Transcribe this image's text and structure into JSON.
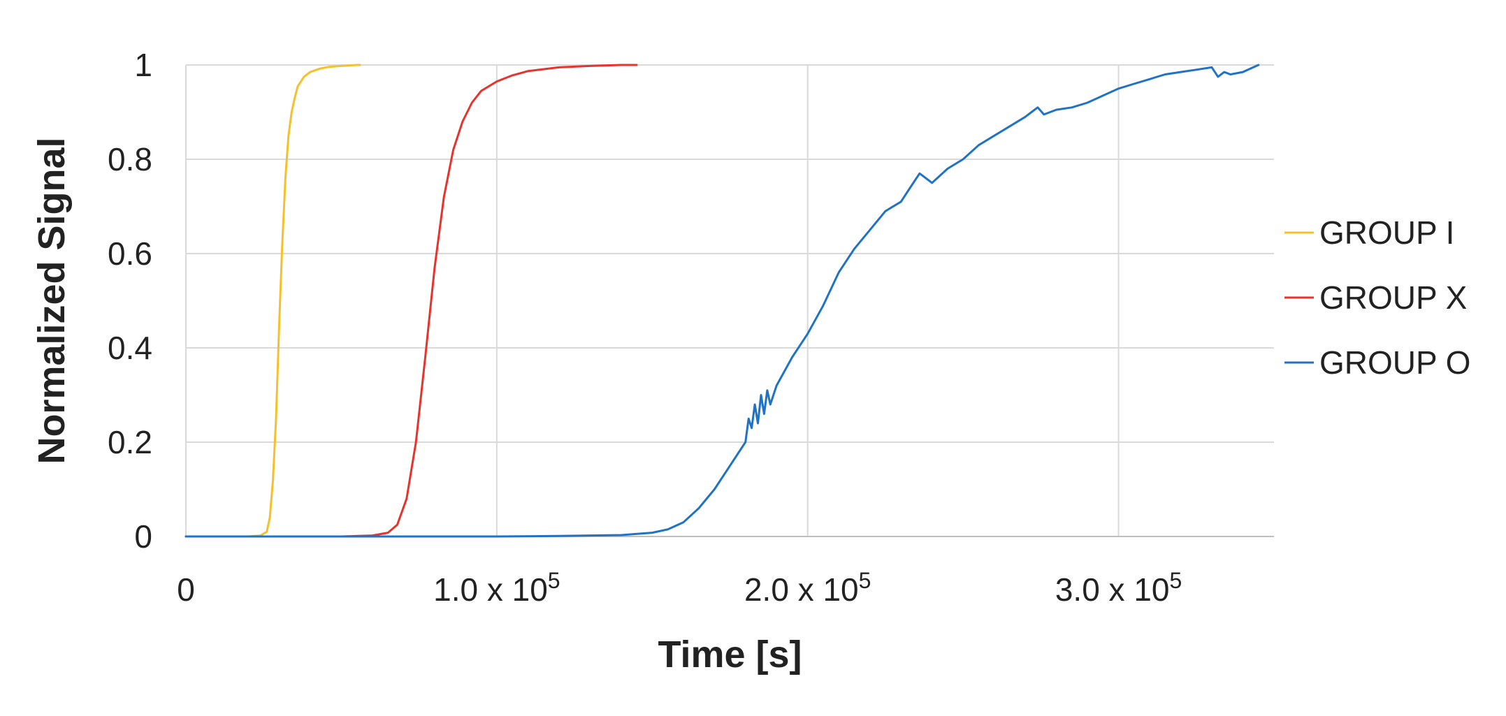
{
  "chart_data": {
    "type": "line",
    "title": "",
    "xlabel": "Time [s]",
    "ylabel": "Normalized Signal",
    "xlim": [
      0,
      350000
    ],
    "ylim": [
      0,
      1
    ],
    "grid": true,
    "legend_position": "right",
    "x_ticks": [
      {
        "value": 0,
        "label": "0",
        "sup": ""
      },
      {
        "value": 100000,
        "label": "1.0 x 10",
        "sup": "5"
      },
      {
        "value": 200000,
        "label": "2.0 x 10",
        "sup": "5"
      },
      {
        "value": 300000,
        "label": "3.0 x 10",
        "sup": "5"
      }
    ],
    "y_ticks": [
      {
        "value": 0,
        "label": "0"
      },
      {
        "value": 0.2,
        "label": "0.2"
      },
      {
        "value": 0.4,
        "label": "0.4"
      },
      {
        "value": 0.6,
        "label": "0.6"
      },
      {
        "value": 0.8,
        "label": "0.8"
      },
      {
        "value": 1,
        "label": "1"
      }
    ],
    "series": [
      {
        "name": "GROUP I",
        "color": "#f5c02c",
        "x": [
          0,
          20000,
          24000,
          26000,
          27000,
          28000,
          29000,
          30000,
          31000,
          32000,
          33000,
          34000,
          35000,
          36000,
          38000,
          40000,
          43000,
          46000,
          50000,
          55000,
          56000
        ],
        "y": [
          0,
          0,
          0.002,
          0.01,
          0.04,
          0.12,
          0.25,
          0.45,
          0.62,
          0.76,
          0.85,
          0.9,
          0.93,
          0.955,
          0.975,
          0.985,
          0.992,
          0.996,
          0.998,
          1.0,
          1.0
        ]
      },
      {
        "name": "GROUP X",
        "color": "#e8322c",
        "x": [
          0,
          50000,
          60000,
          65000,
          68000,
          71000,
          74000,
          77000,
          80000,
          83000,
          86000,
          89000,
          92000,
          95000,
          100000,
          105000,
          110000,
          120000,
          130000,
          140000,
          145000
        ],
        "y": [
          0,
          0,
          0.002,
          0.008,
          0.025,
          0.08,
          0.2,
          0.38,
          0.57,
          0.72,
          0.82,
          0.88,
          0.92,
          0.945,
          0.965,
          0.978,
          0.987,
          0.995,
          0.998,
          1.0,
          1.0
        ]
      },
      {
        "name": "GROUP O",
        "color": "#1f72c4",
        "x": [
          0,
          100000,
          120000,
          140000,
          150000,
          155000,
          160000,
          165000,
          170000,
          175000,
          178000,
          180000,
          181000,
          182000,
          183000,
          184000,
          185000,
          186000,
          187000,
          188000,
          190000,
          195000,
          200000,
          205000,
          210000,
          215000,
          220000,
          225000,
          230000,
          233000,
          236000,
          238000,
          240000,
          245000,
          250000,
          255000,
          260000,
          265000,
          270000,
          272000,
          274000,
          276000,
          278000,
          280000,
          285000,
          290000,
          295000,
          300000,
          305000,
          310000,
          315000,
          320000,
          325000,
          330000,
          332000,
          334000,
          336000,
          340000,
          345000
        ],
        "y": [
          0,
          0,
          0.001,
          0.003,
          0.008,
          0.015,
          0.03,
          0.06,
          0.1,
          0.15,
          0.18,
          0.2,
          0.25,
          0.23,
          0.28,
          0.24,
          0.3,
          0.26,
          0.31,
          0.28,
          0.32,
          0.38,
          0.43,
          0.49,
          0.56,
          0.61,
          0.65,
          0.69,
          0.71,
          0.74,
          0.77,
          0.76,
          0.75,
          0.78,
          0.8,
          0.83,
          0.85,
          0.87,
          0.89,
          0.9,
          0.91,
          0.895,
          0.9,
          0.905,
          0.91,
          0.92,
          0.935,
          0.95,
          0.96,
          0.97,
          0.98,
          0.985,
          0.99,
          0.995,
          0.975,
          0.985,
          0.98,
          0.985,
          1.0
        ]
      }
    ]
  }
}
